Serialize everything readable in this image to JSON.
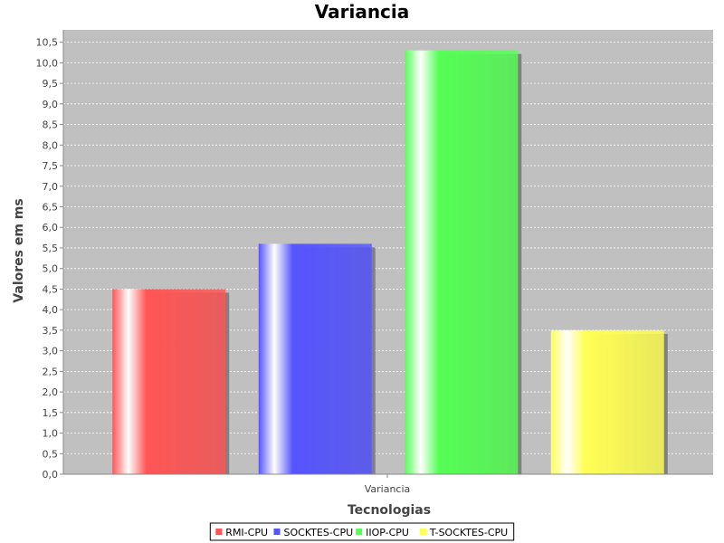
{
  "chart_data": {
    "type": "bar",
    "title": "Variancia",
    "xlabel": "Tecnologias",
    "ylabel": "Valores em ms",
    "categories": [
      "Variancia"
    ],
    "series": [
      {
        "name": "RMI-CPU",
        "values": [
          4.5
        ],
        "color": "#ff5555"
      },
      {
        "name": "SOCKTES-CPU",
        "values": [
          5.6
        ],
        "color": "#5555ff"
      },
      {
        "name": "IIOP-CPU",
        "values": [
          10.3
        ],
        "color": "#55ff55"
      },
      {
        "name": "T-SOCKTES-CPU",
        "values": [
          3.5
        ],
        "color": "#ffff55"
      }
    ],
    "ylim": [
      0,
      10.8
    ],
    "ytick_step": 0.5,
    "yticks": [
      "0,0",
      "0,5",
      "1,0",
      "1,5",
      "2,0",
      "2,5",
      "3,0",
      "3,5",
      "4,0",
      "4,5",
      "5,0",
      "5,5",
      "6,0",
      "6,5",
      "7,0",
      "7,5",
      "8,0",
      "8,5",
      "9,0",
      "9,5",
      "10,0",
      "10,5"
    ],
    "grid": true,
    "legend": "bottom",
    "plot_background": "#c0c0c0"
  }
}
